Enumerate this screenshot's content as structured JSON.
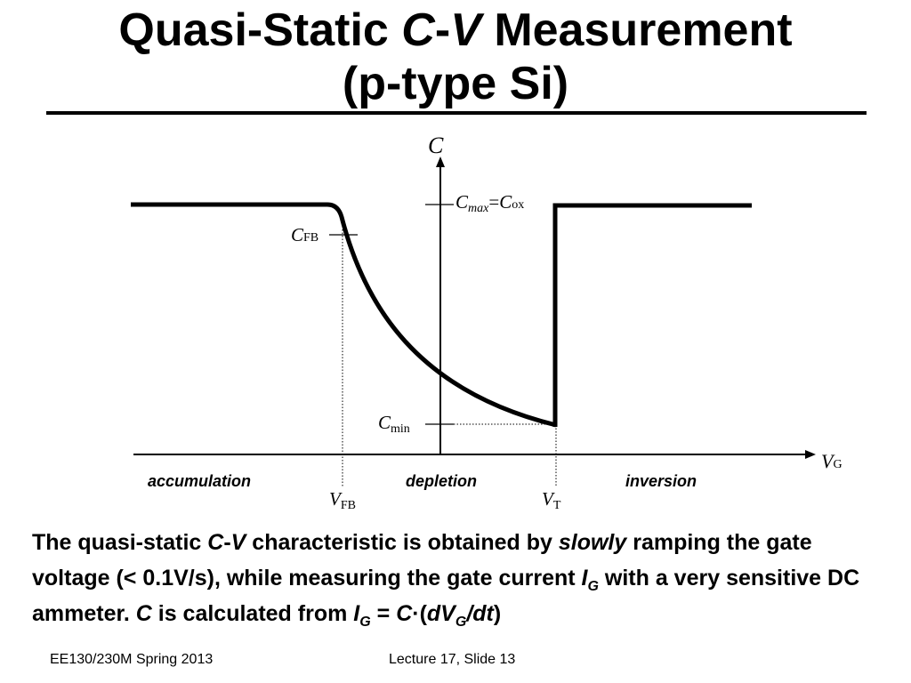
{
  "title": {
    "line1_prefix": "Quasi-Static ",
    "line1_c": "C",
    "line1_dash": "-",
    "line1_v": "V",
    "line1_suffix": " Measurement",
    "line2": "(p-type Si)"
  },
  "diagram": {
    "y_axis_label": "C",
    "x_axis_label_main": "V",
    "x_axis_label_sub": "G",
    "cmax_c": "C",
    "cmax_sub": "max",
    "cmax_eq": "=",
    "cox_c": "C",
    "cox_sub": "ox",
    "cfb_c": "C",
    "cfb_sub": "FB",
    "cmin_c": "C",
    "cmin_sub": "min",
    "vfb_v": "V",
    "vfb_sub": "FB",
    "vt_v": "V",
    "vt_sub": "T",
    "regions": {
      "accumulation": "accumulation",
      "depletion": "depletion",
      "inversion": "inversion"
    }
  },
  "body": {
    "s1": "The quasi-static ",
    "s2": "C",
    "s3": "-",
    "s4": "V",
    "s5": " characteristic is obtained by ",
    "s6": "slowly",
    "s7": " ramping the gate voltage (< 0.1V/s), while measuring the gate current ",
    "s8": "I",
    "s9": "G",
    "s10": " with a very sensitive DC ammeter. ",
    "s11": "C",
    "s12": " is calculated from ",
    "s13": "I",
    "s14": "G",
    "s15": " = ",
    "s16": "C",
    "s17": "·(",
    "s18": "dV",
    "s19": "G",
    "s20": "/",
    "s21": "dt",
    "s22": ")"
  },
  "footer": {
    "left": "EE130/230M Spring 2013",
    "center": "Lecture 17, Slide 13"
  }
}
